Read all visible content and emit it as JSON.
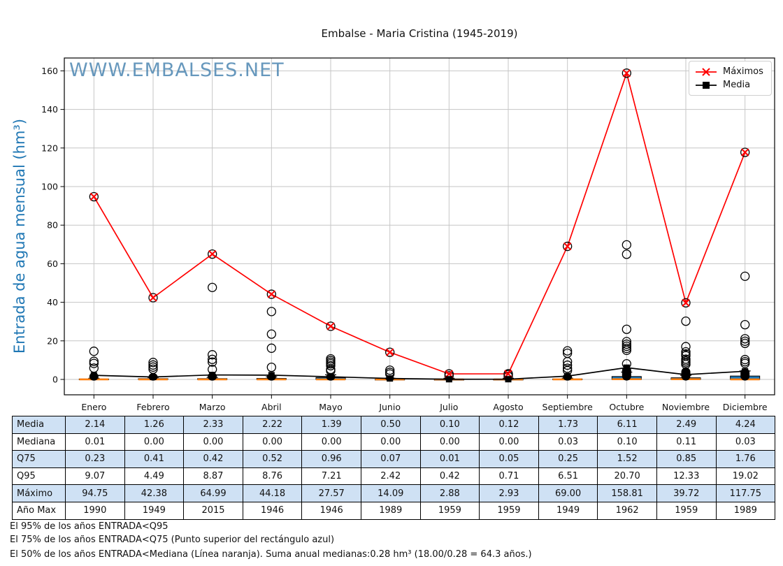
{
  "title": "Embalse - Maria Cristina (1945-2019)",
  "watermark": "WWW.EMBALSES.NET",
  "legend": {
    "items": [
      {
        "label": "Máximos",
        "color": "#ff0000",
        "marker": "x"
      },
      {
        "label": "Media",
        "color": "#000000",
        "marker": "square"
      }
    ]
  },
  "chart_data": {
    "type": "boxplot",
    "title": "Embalse - Maria Cristina (1945-2019)",
    "ylabel": "Entrada de agua mensual (hm³)",
    "xlabel": "",
    "ylim": [
      0,
      160
    ],
    "yticks": [
      0,
      20,
      40,
      60,
      80,
      100,
      120,
      140,
      160
    ],
    "grid": true,
    "legend_position": "upper right",
    "categories": [
      "Enero",
      "Febrero",
      "Marzo",
      "Abril",
      "Mayo",
      "Junio",
      "Julio",
      "Agosto",
      "Septiembre",
      "Octubre",
      "Noviembre",
      "Diciembre"
    ],
    "series": [
      {
        "name": "Máximos",
        "type": "line",
        "color": "#ff0000",
        "marker": "x",
        "values": [
          94.75,
          42.38,
          64.99,
          44.18,
          27.57,
          14.09,
          2.88,
          2.93,
          69.0,
          158.81,
          39.72,
          117.75
        ]
      },
      {
        "name": "Media",
        "type": "line",
        "color": "#000000",
        "marker": "square",
        "values": [
          2.14,
          1.26,
          2.33,
          2.22,
          1.39,
          0.5,
          0.1,
          0.12,
          1.73,
          6.11,
          2.49,
          4.24
        ]
      }
    ],
    "boxplot": {
      "box_color": "#1f77b4",
      "median_color": "#ff7f0e",
      "mediana": [
        0.01,
        0.0,
        0.0,
        0.0,
        0.0,
        0.0,
        0.0,
        0.0,
        0.03,
        0.1,
        0.11,
        0.03
      ],
      "q75": [
        0.23,
        0.41,
        0.42,
        0.52,
        0.96,
        0.07,
        0.01,
        0.05,
        0.25,
        1.52,
        0.85,
        1.76
      ],
      "q95": [
        9.07,
        4.49,
        8.87,
        8.76,
        7.21,
        2.42,
        0.42,
        0.71,
        6.51,
        20.7,
        12.33,
        19.02
      ]
    },
    "outliers": [
      [
        14.6,
        9.4,
        8.3,
        5.9
      ],
      [
        8.8,
        7.5,
        6.4,
        5.3
      ],
      [
        47.7,
        12.8,
        10.4,
        9.0,
        5.2
      ],
      [
        35.2,
        23.5,
        16.2,
        6.3
      ],
      [
        10.7,
        9.8,
        8.9,
        8.1,
        7.1,
        5.2,
        4.4
      ],
      [
        4.8,
        3.7,
        2.8
      ],
      [
        1.9
      ],
      [
        2.5,
        1.6
      ],
      [
        14.8,
        13.6,
        9.2,
        7.4,
        5.8,
        4.6
      ],
      [
        69.8,
        64.9,
        26.0,
        19.6,
        18.3,
        17.2,
        16.1,
        15.1,
        8.1
      ],
      [
        30.2,
        17.0,
        14.3,
        13.2,
        12.3,
        10.5,
        9.6,
        8.7,
        7.8
      ],
      [
        53.5,
        28.4,
        21.1,
        19.8,
        18.7,
        10.3,
        9.2,
        8.3
      ]
    ],
    "cluster_top": [
      3.6,
      3.2,
      3.6,
      3.2,
      3.2,
      1.6,
      1.0,
      1.1,
      3.2,
      7.0,
      6.2,
      5.8
    ]
  },
  "table": {
    "rows": [
      {
        "label": "Media",
        "shaded": true,
        "values": [
          "2.14",
          "1.26",
          "2.33",
          "2.22",
          "1.39",
          "0.50",
          "0.10",
          "0.12",
          "1.73",
          "6.11",
          "2.49",
          "4.24"
        ]
      },
      {
        "label": "Mediana",
        "shaded": false,
        "values": [
          "0.01",
          "0.00",
          "0.00",
          "0.00",
          "0.00",
          "0.00",
          "0.00",
          "0.00",
          "0.03",
          "0.10",
          "0.11",
          "0.03"
        ]
      },
      {
        "label": "Q75",
        "shaded": true,
        "values": [
          "0.23",
          "0.41",
          "0.42",
          "0.52",
          "0.96",
          "0.07",
          "0.01",
          "0.05",
          "0.25",
          "1.52",
          "0.85",
          "1.76"
        ]
      },
      {
        "label": "Q95",
        "shaded": false,
        "values": [
          "9.07",
          "4.49",
          "8.87",
          "8.76",
          "7.21",
          "2.42",
          "0.42",
          "0.71",
          "6.51",
          "20.70",
          "12.33",
          "19.02"
        ]
      },
      {
        "label": "Máximo",
        "shaded": true,
        "values": [
          "94.75",
          "42.38",
          "64.99",
          "44.18",
          "27.57",
          "14.09",
          "2.88",
          "2.93",
          "69.00",
          "158.81",
          "39.72",
          "117.75"
        ]
      },
      {
        "label": "Año Max",
        "shaded": false,
        "values": [
          "1990",
          "1949",
          "2015",
          "1946",
          "1946",
          "1989",
          "1959",
          "1959",
          "1949",
          "1962",
          "1959",
          "1989"
        ]
      }
    ]
  },
  "footer": {
    "lines": [
      "El 95% de los años ENTRADA<Q95",
      "El 75% de los años ENTRADA<Q75 (Punto superior del rectángulo azul)",
      "El 50% de los años ENTRADA<Mediana (Línea naranja). Suma anual medianas:0.28 hm³ (18.00/0.28 = 64.3 años.)"
    ]
  },
  "colors": {
    "watermark": "#4d87b2",
    "ylabel": "#1f77b4",
    "grid": "#c6c6c6",
    "table_shade": "#cfe1f4",
    "max_line": "#ff0000",
    "media_line": "#000000",
    "box_fill": "#1f77b4",
    "median_line": "#ff7f0e"
  }
}
